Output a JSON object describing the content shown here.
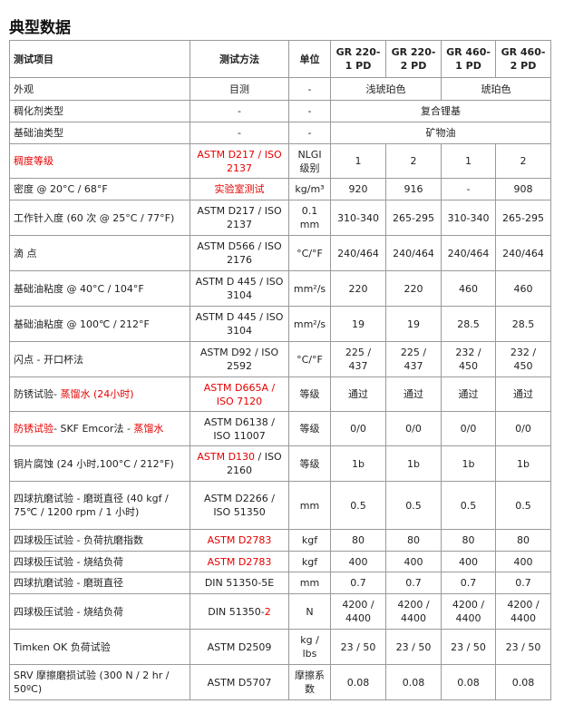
{
  "title": "典型数据",
  "header": [
    "测试项目",
    "测试方法",
    "单位",
    "GR 220-1 PD",
    "GR 220-2 PD",
    "GR 460-1 PD",
    "GR 460-2 PD"
  ],
  "rows": [
    {
      "h": 20,
      "cells": [
        "外观",
        "目测",
        "-",
        {
          "span": 2,
          "v": "浅琥珀色"
        },
        {
          "span": 2,
          "v": "琥珀色"
        }
      ]
    },
    {
      "h": 19,
      "cells": [
        "稠化剂类型",
        "-",
        "-",
        {
          "span": 4,
          "v": "复合锂基"
        }
      ]
    },
    {
      "h": 19,
      "cells": [
        "基础油类型",
        "-",
        "-",
        {
          "span": 4,
          "v": "矿物油"
        }
      ]
    },
    {
      "h": 33,
      "cells": [
        [
          {
            "t": "稠度等级",
            "red": true
          }
        ],
        [
          {
            "t": "ASTM D217 / ISO 2137",
            "red": true
          }
        ],
        "NLGI 级别",
        "1",
        "2",
        "1",
        "2"
      ]
    },
    {
      "h": 19,
      "cells": [
        "密度 @ 20°C / 68°F",
        [
          {
            "t": "实验室测试",
            "red": true
          }
        ],
        "kg/m³",
        "920",
        "916",
        "-",
        "908"
      ]
    },
    {
      "h": 34,
      "cells": [
        "工作针入度 (60 次 @ 25°C / 77°F)",
        "ASTM D217 / ISO 2137",
        "0.1 mm",
        "310-340",
        "265-295",
        "310-340",
        "265-295"
      ]
    },
    {
      "h": 34,
      "cells": [
        "滴 点",
        "ASTM D566 / ISO 2176",
        "°C/°F",
        "240/464",
        "240/464",
        "240/464",
        "240/464"
      ]
    },
    {
      "h": 34,
      "cells": [
        "基础油粘度 @ 40°C / 104°F",
        "ASTM D 445 / ISO 3104",
        "mm²/s",
        "220",
        "220",
        "460",
        "460"
      ]
    },
    {
      "h": 34,
      "cells": [
        "基础油粘度 @ 100℃ / 212°F",
        "ASTM D 445 / ISO 3104",
        "mm²/s",
        "19",
        "19",
        "28.5",
        "28.5"
      ]
    },
    {
      "h": 34,
      "cells": [
        "闪点 - 开口杯法",
        "ASTM D92 / ISO 2592",
        "°C/°F",
        "225 / 437",
        "225 / 437",
        "232 / 450",
        "232 / 450"
      ]
    },
    {
      "h": 33,
      "cells": [
        [
          {
            "t": "防锈试验- "
          },
          {
            "t": "蒸馏水 (24小时)",
            "red": true
          }
        ],
        [
          {
            "t": "ASTM D665A / ISO 7120",
            "red": true
          }
        ],
        "等级",
        "通过",
        "通过",
        "通过",
        "通过"
      ]
    },
    {
      "h": 33,
      "cells": [
        [
          {
            "t": "防锈试验",
            "red": true
          },
          {
            "t": "- SKF Emcor法 - "
          },
          {
            "t": "蒸馏水",
            "red": true
          }
        ],
        "ASTM D6138 / ISO 11007",
        "等级",
        "0/0",
        "0/0",
        "0/0",
        "0/0"
      ]
    },
    {
      "h": 34,
      "cells": [
        "铜片腐蚀 (24 小时,100°C / 212°F)",
        [
          {
            "t": "ASTM D130",
            "red": true
          },
          {
            "t": " / ISO 2160"
          }
        ],
        "等级",
        "1b",
        "1b",
        "1b",
        "1b"
      ]
    },
    {
      "h": 48,
      "cells": [
        "四球抗磨试验 - 磨斑直径 (40 kgf / 75℃ / 1200 rpm / 1 小时)",
        "ASTM D2266 / ISO 51350",
        "mm",
        "0.5",
        "0.5",
        "0.5",
        "0.5"
      ]
    },
    {
      "h": 19,
      "cells": [
        "四球极压试验 - 负荷抗磨指数",
        [
          {
            "t": "ASTM D2783",
            "red": true
          }
        ],
        "kgf",
        "80",
        "80",
        "80",
        "80"
      ]
    },
    {
      "h": 18,
      "cells": [
        "四球极压试验 - 烧结负荷",
        [
          {
            "t": "ASTM D2783",
            "red": true
          }
        ],
        "kgf",
        "400",
        "400",
        "400",
        "400"
      ]
    },
    {
      "h": 19,
      "cells": [
        "四球抗磨试验 - 磨斑直径",
        "DIN 51350-5E",
        "mm",
        "0.7",
        "0.7",
        "0.7",
        "0.7"
      ]
    },
    {
      "h": 34,
      "cells": [
        "四球极压试验 - 烧结负荷",
        [
          {
            "t": "DIN 51350-"
          },
          {
            "t": "2",
            "red": true
          }
        ],
        "N",
        "4200 / 4400",
        "4200 / 4400",
        "4200 / 4400",
        "4200 / 4400"
      ]
    },
    {
      "h": 34,
      "cells": [
        "Timken OK 负荷试验",
        "ASTM D2509",
        "kg / lbs",
        "23 / 50",
        "23 / 50",
        "23 / 50",
        "23 / 50"
      ]
    },
    {
      "h": 34,
      "cells": [
        "SRV 摩擦磨损试验 (300 N / 2 hr / 50ºC)",
        "ASTM D5707",
        "摩擦系数",
        "0.08",
        "0.08",
        "0.08",
        "0.08"
      ]
    }
  ]
}
